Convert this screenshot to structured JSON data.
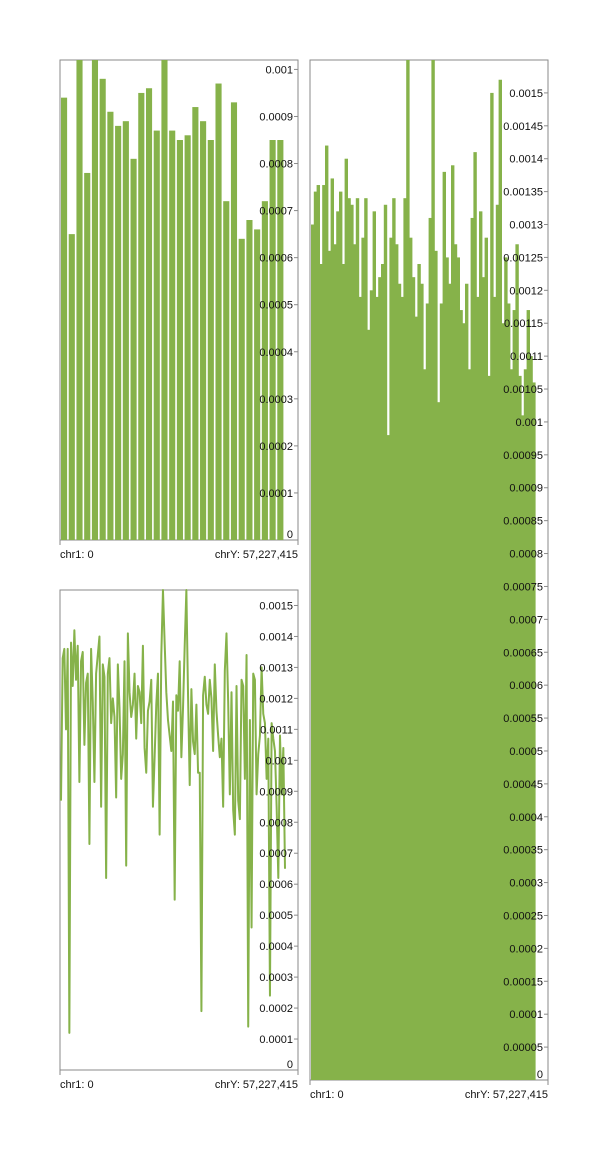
{
  "colors": {
    "series": "#86b24a",
    "frame": "#8a8a8a",
    "text": "#111111"
  },
  "chart_data": [
    {
      "id": "top-left",
      "type": "bar",
      "x_start_label": "chr1: 0",
      "x_end_label": "chrY: 57,227,415",
      "ylim": [
        0,
        0.00102
      ],
      "y_ticks": [
        {
          "value": 0,
          "label": "0"
        },
        {
          "value": 0.0001,
          "label": "0.0001"
        },
        {
          "value": 0.0002,
          "label": "0.0002"
        },
        {
          "value": 0.0003,
          "label": "0.0003"
        },
        {
          "value": 0.0004,
          "label": "0.0004"
        },
        {
          "value": 0.0005,
          "label": "0.0005"
        },
        {
          "value": 0.0006,
          "label": "0.0006"
        },
        {
          "value": 0.0007,
          "label": "0.0007"
        },
        {
          "value": 0.0008,
          "label": "0.0008"
        },
        {
          "value": 0.0009,
          "label": "0.0009"
        },
        {
          "value": 0.001,
          "label": "0.001"
        }
      ],
      "values": [
        0.00094,
        0.00065,
        0.00104,
        0.00078,
        0.00106,
        0.00098,
        0.00091,
        0.00088,
        0.00089,
        0.00081,
        0.00095,
        0.00096,
        0.00087,
        0.00102,
        0.00087,
        0.00085,
        0.00086,
        0.00092,
        0.00089,
        0.00085,
        0.00097,
        0.00072,
        0.00093,
        0.00064,
        0.00068,
        0.00066,
        0.00072,
        0.00085,
        0.00085
      ]
    },
    {
      "id": "bottom-left",
      "type": "line",
      "x_start_label": "chr1: 0",
      "x_end_label": "chrY: 57,227,415",
      "ylim": [
        0,
        0.00155
      ],
      "y_ticks": [
        {
          "value": 0,
          "label": "0"
        },
        {
          "value": 0.0001,
          "label": "0.0001"
        },
        {
          "value": 0.0002,
          "label": "0.0002"
        },
        {
          "value": 0.0003,
          "label": "0.0003"
        },
        {
          "value": 0.0004,
          "label": "0.0004"
        },
        {
          "value": 0.0005,
          "label": "0.0005"
        },
        {
          "value": 0.0006,
          "label": "0.0006"
        },
        {
          "value": 0.0007,
          "label": "0.0007"
        },
        {
          "value": 0.0008,
          "label": "0.0008"
        },
        {
          "value": 0.0009,
          "label": "0.0009"
        },
        {
          "value": 0.001,
          "label": "0.001"
        },
        {
          "value": 0.0011,
          "label": "0.0011"
        },
        {
          "value": 0.0012,
          "label": "0.0012"
        },
        {
          "value": 0.0013,
          "label": "0.0013"
        },
        {
          "value": 0.0014,
          "label": "0.0014"
        },
        {
          "value": 0.0015,
          "label": "0.0015"
        }
      ],
      "values": [
        0.00087,
        0.00133,
        0.00136,
        0.0011,
        0.00136,
        0.00012,
        0.00138,
        0.00124,
        0.00142,
        0.00126,
        0.00137,
        0.00093,
        0.00132,
        0.00135,
        0.00105,
        0.00125,
        0.00128,
        0.00073,
        0.00136,
        0.00119,
        0.00093,
        0.00128,
        0.00134,
        0.0014,
        0.00085,
        0.00131,
        0.00127,
        0.00062,
        0.00128,
        0.00133,
        0.00112,
        0.0012,
        0.00114,
        0.00088,
        0.00131,
        0.00117,
        0.00094,
        0.00102,
        0.00132,
        0.00066,
        0.00141,
        0.00122,
        0.00114,
        0.00118,
        0.00128,
        0.00107,
        0.00124,
        0.00122,
        0.00112,
        0.00137,
        0.00104,
        0.00096,
        0.00116,
        0.00119,
        0.00126,
        0.00085,
        0.00101,
        0.00118,
        0.00128,
        0.00076,
        0.00134,
        0.00155,
        0.00138,
        0.00122,
        0.00113,
        0.00108,
        0.00103,
        0.00119,
        0.00055,
        0.00121,
        0.00116,
        0.00132,
        0.00101,
        0.00117,
        0.00137,
        0.00155,
        0.00121,
        0.00092,
        0.00123,
        0.00106,
        0.00102,
        0.00118,
        0.00096,
        0.00096,
        0.00019,
        0.00121,
        0.00127,
        0.00118,
        0.00115,
        0.00126,
        0.0012,
        0.00103,
        0.00131,
        0.00116,
        0.00108,
        0.00101,
        0.00107,
        0.00085,
        0.00129,
        0.00141,
        0.00119,
        0.00089,
        0.00122,
        0.00084,
        0.00076,
        0.00124,
        0.00087,
        0.00081,
        0.00126,
        0.00124,
        0.00094,
        0.00134,
        0.00014,
        0.00113,
        0.00046,
        0.00128,
        0.00126,
        0.00089,
        0.00102,
        0.00108,
        0.0013,
        0.00115,
        0.00112,
        0.00094,
        0.00107,
        0.00024,
        0.00112,
        0.00107,
        0.00103,
        0.00085,
        0.00062,
        0.00108,
        0.00089,
        0.00104,
        0.00065
      ]
    },
    {
      "id": "right",
      "type": "area",
      "x_start_label": "chr1: 0",
      "x_end_label": "chrY: 57,227,415",
      "ylim": [
        0,
        0.00155
      ],
      "y_ticks": [
        {
          "value": 0,
          "label": "0"
        },
        {
          "value": 5e-05,
          "label": "0.00005"
        },
        {
          "value": 0.0001,
          "label": "0.0001"
        },
        {
          "value": 0.00015,
          "label": "0.00015"
        },
        {
          "value": 0.0002,
          "label": "0.0002"
        },
        {
          "value": 0.00025,
          "label": "0.00025"
        },
        {
          "value": 0.0003,
          "label": "0.0003"
        },
        {
          "value": 0.00035,
          "label": "0.00035"
        },
        {
          "value": 0.0004,
          "label": "0.0004"
        },
        {
          "value": 0.00045,
          "label": "0.00045"
        },
        {
          "value": 0.0005,
          "label": "0.0005"
        },
        {
          "value": 0.00055,
          "label": "0.00055"
        },
        {
          "value": 0.0006,
          "label": "0.0006"
        },
        {
          "value": 0.00065,
          "label": "0.00065"
        },
        {
          "value": 0.0007,
          "label": "0.0007"
        },
        {
          "value": 0.00075,
          "label": "0.00075"
        },
        {
          "value": 0.0008,
          "label": "0.0008"
        },
        {
          "value": 0.00085,
          "label": "0.00085"
        },
        {
          "value": 0.0009,
          "label": "0.0009"
        },
        {
          "value": 0.00095,
          "label": "0.00095"
        },
        {
          "value": 0.001,
          "label": "0.001"
        },
        {
          "value": 0.00105,
          "label": "0.00105"
        },
        {
          "value": 0.0011,
          "label": "0.0011"
        },
        {
          "value": 0.00115,
          "label": "0.00115"
        },
        {
          "value": 0.0012,
          "label": "0.0012"
        },
        {
          "value": 0.00125,
          "label": "0.00125"
        },
        {
          "value": 0.0013,
          "label": "0.0013"
        },
        {
          "value": 0.00135,
          "label": "0.00135"
        },
        {
          "value": 0.0014,
          "label": "0.0014"
        },
        {
          "value": 0.00145,
          "label": "0.00145"
        },
        {
          "value": 0.0015,
          "label": "0.0015"
        }
      ],
      "values": [
        0.0013,
        0.00135,
        0.00136,
        0.00124,
        0.00136,
        0.00142,
        0.00126,
        0.00137,
        0.00127,
        0.00132,
        0.00135,
        0.00124,
        0.0014,
        0.00134,
        0.00133,
        0.00127,
        0.00134,
        0.00119,
        0.00128,
        0.00134,
        0.00114,
        0.0012,
        0.00132,
        0.00119,
        0.00122,
        0.00124,
        0.00133,
        0.00098,
        0.00128,
        0.00134,
        0.00127,
        0.00121,
        0.00119,
        0.00134,
        0.00155,
        0.00128,
        0.00122,
        0.00116,
        0.00124,
        0.00121,
        0.00108,
        0.00118,
        0.00131,
        0.00155,
        0.00126,
        0.00103,
        0.00118,
        0.00138,
        0.00125,
        0.00121,
        0.00139,
        0.00127,
        0.00125,
        0.00117,
        0.00115,
        0.00121,
        0.00108,
        0.00131,
        0.00141,
        0.00119,
        0.00132,
        0.00122,
        0.00128,
        0.00107,
        0.0015,
        0.00119,
        0.00133,
        0.00152,
        0.00115,
        0.00125,
        0.00118,
        0.00108,
        0.00117,
        0.00127,
        0.00107,
        0.00101,
        0.00108,
        0.00117,
        0.0011,
        0.00106
      ]
    }
  ]
}
